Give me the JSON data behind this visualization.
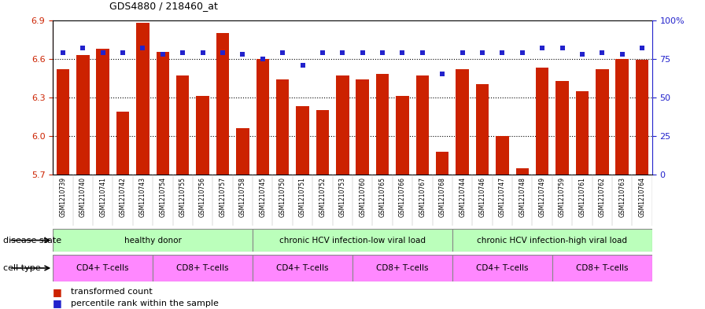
{
  "title": "GDS4880 / 218460_at",
  "samples": [
    "GSM1210739",
    "GSM1210740",
    "GSM1210741",
    "GSM1210742",
    "GSM1210743",
    "GSM1210754",
    "GSM1210755",
    "GSM1210756",
    "GSM1210757",
    "GSM1210758",
    "GSM1210745",
    "GSM1210750",
    "GSM1210751",
    "GSM1210752",
    "GSM1210753",
    "GSM1210760",
    "GSM1210765",
    "GSM1210766",
    "GSM1210767",
    "GSM1210768",
    "GSM1210744",
    "GSM1210746",
    "GSM1210747",
    "GSM1210748",
    "GSM1210749",
    "GSM1210759",
    "GSM1210761",
    "GSM1210762",
    "GSM1210763",
    "GSM1210764"
  ],
  "red_values": [
    6.52,
    6.63,
    6.68,
    6.19,
    6.88,
    6.65,
    6.47,
    6.31,
    6.8,
    6.06,
    6.6,
    6.44,
    6.23,
    6.2,
    6.47,
    6.44,
    6.48,
    6.31,
    6.47,
    5.88,
    6.52,
    6.4,
    6.0,
    5.75,
    6.53,
    6.43,
    6.35,
    6.52,
    6.6,
    6.59
  ],
  "blue_values": [
    79,
    82,
    79,
    79,
    82,
    78,
    79,
    79,
    79,
    78,
    75,
    79,
    71,
    79,
    79,
    79,
    79,
    79,
    79,
    65,
    79,
    79,
    79,
    79,
    82,
    82,
    78,
    79,
    78,
    82
  ],
  "ylim_left": [
    5.7,
    6.9
  ],
  "ylim_right": [
    0,
    100
  ],
  "yticks_left": [
    5.7,
    6.0,
    6.3,
    6.6,
    6.9
  ],
  "yticks_right": [
    0,
    25,
    50,
    75,
    100
  ],
  "ytick_labels_right": [
    "0",
    "25",
    "50",
    "75",
    "100%"
  ],
  "bar_color": "#cc2200",
  "dot_color": "#2222cc",
  "ds_groups": [
    {
      "label": "healthy donor",
      "start": 0,
      "end": 10
    },
    {
      "label": "chronic HCV infection-low viral load",
      "start": 10,
      "end": 20
    },
    {
      "label": "chronic HCV infection-high viral load",
      "start": 20,
      "end": 30
    }
  ],
  "ct_groups": [
    {
      "label": "CD4+ T-cells",
      "start": 0,
      "end": 5
    },
    {
      "label": "CD8+ T-cells",
      "start": 5,
      "end": 10
    },
    {
      "label": "CD4+ T-cells",
      "start": 10,
      "end": 15
    },
    {
      "label": "CD8+ T-cells",
      "start": 15,
      "end": 20
    },
    {
      "label": "CD4+ T-cells",
      "start": 20,
      "end": 25
    },
    {
      "label": "CD8+ T-cells",
      "start": 25,
      "end": 30
    }
  ],
  "ds_color": "#bbffbb",
  "ct_cd4_color": "#ff88ff",
  "ct_cd8_color": "#ff88ff",
  "disease_state_label": "disease state",
  "cell_type_label": "cell type",
  "legend_red": "transformed count",
  "legend_blue": "percentile rank within the sample",
  "bg_color": "#ffffff",
  "plot_bg": "#ffffff",
  "xtick_bg": "#dddddd"
}
